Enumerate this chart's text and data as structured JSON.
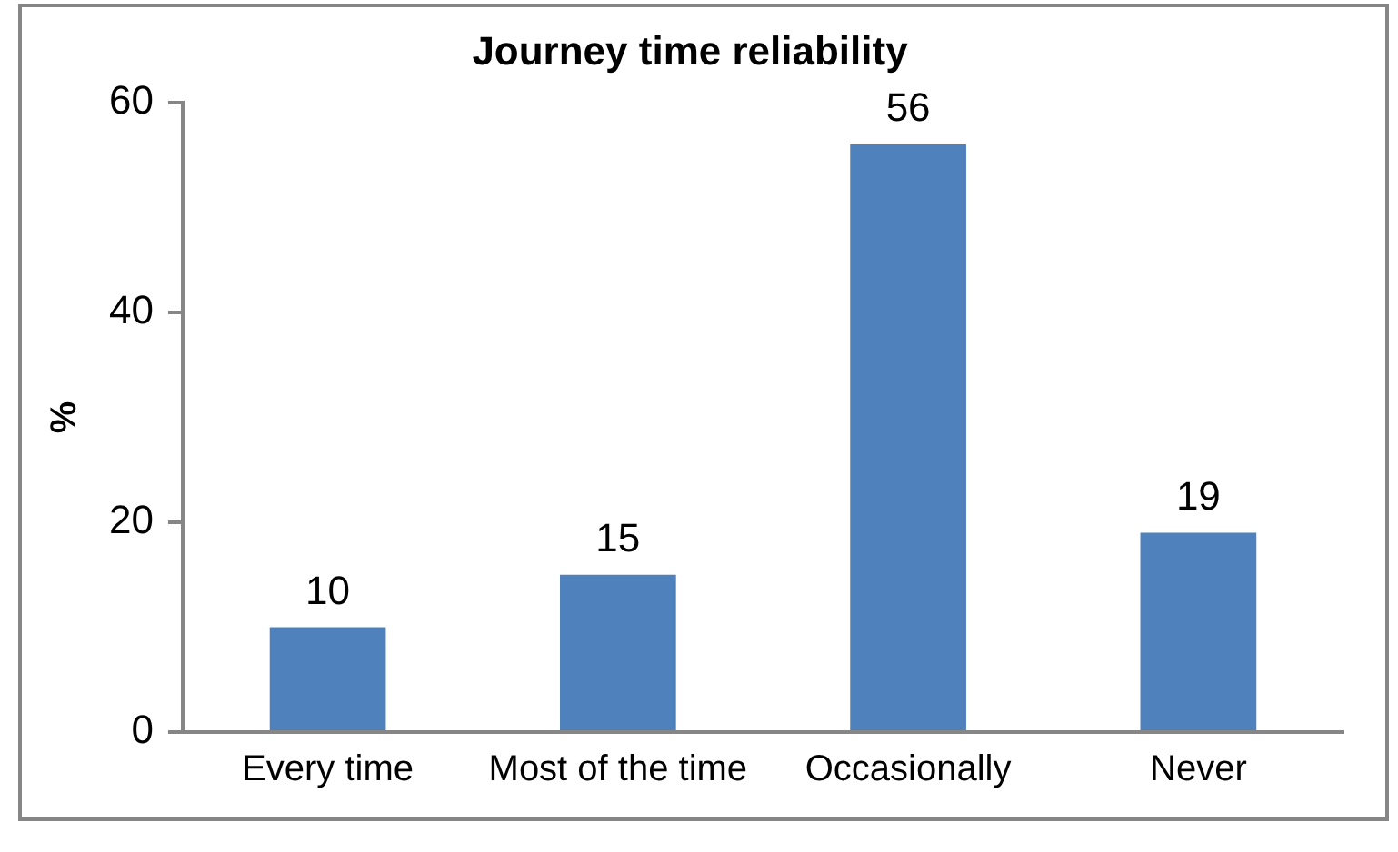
{
  "chart_data": {
    "type": "bar",
    "title": "Journey time reliability",
    "ylabel": "%",
    "categories": [
      "Every time",
      "Most of the time",
      "Occasionally",
      "Never"
    ],
    "values": [
      10,
      15,
      56,
      19
    ],
    "color": "#4f81bd",
    "ylim": [
      0,
      60
    ],
    "yticks": [
      0,
      20,
      40,
      60
    ],
    "grid": false,
    "legend": false,
    "data_labels": true
  }
}
